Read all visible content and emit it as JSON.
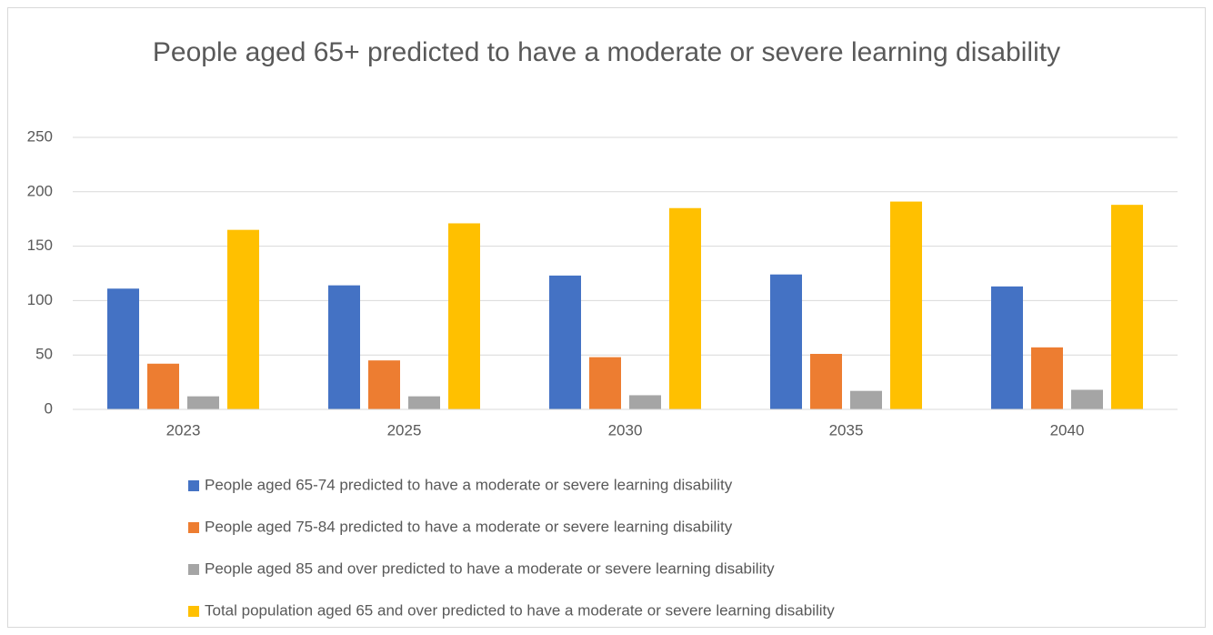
{
  "chart_data": {
    "type": "bar",
    "title": "People aged 65+ predicted to have a moderate or severe learning disability",
    "categories": [
      "2023",
      "2025",
      "2030",
      "2035",
      "2040"
    ],
    "series": [
      {
        "name": "People aged 65-74 predicted to have a moderate or severe learning disability",
        "color": "#4472c4",
        "values": [
          111,
          114,
          123,
          124,
          113
        ]
      },
      {
        "name": "People aged 75-84 predicted to have a moderate or severe learning disability",
        "color": "#ed7d31",
        "values": [
          42,
          45,
          48,
          51,
          57
        ]
      },
      {
        "name": "People aged 85 and over predicted to have a moderate or severe learning disability",
        "color": "#a5a5a5",
        "values": [
          12,
          12,
          13,
          17,
          18
        ]
      },
      {
        "name": "Total population aged 65 and over predicted to have a moderate or severe learning disability",
        "color": "#ffc000",
        "values": [
          165,
          171,
          185,
          191,
          188
        ]
      }
    ],
    "ylim": [
      0,
      250
    ],
    "yticks": [
      0,
      50,
      100,
      150,
      200,
      250
    ],
    "grid": true,
    "legend": "bottom"
  }
}
